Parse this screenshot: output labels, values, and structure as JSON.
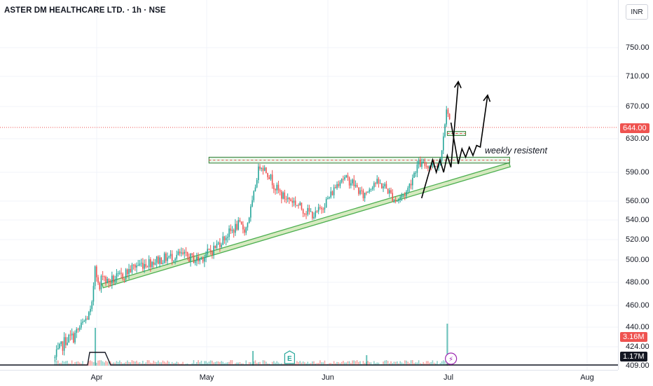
{
  "header": {
    "title": "ASTER DM HEALTHCARE LTD. · 1h · NSE",
    "currency": "INR"
  },
  "badges": {
    "last_price": "644.00",
    "volume_1": "3.16M",
    "volume_2": "1.17M",
    "earnings_marker": "E",
    "dividend_marker": "⚡"
  },
  "colors": {
    "up": "#26a69a",
    "down": "#ef5350",
    "trendline": "#4caf50",
    "drawing": "#000000",
    "price_line": "#ef5350",
    "zone_border": "#8bc34a"
  },
  "annotation": {
    "text": "weekly resistent"
  },
  "chart_data": {
    "type": "candlestick",
    "y_axis": {
      "ticks": [
        750,
        710,
        670,
        630,
        590,
        560,
        540,
        520,
        500,
        480,
        460,
        440,
        424,
        409
      ],
      "labels": [
        "750.00",
        "710.00",
        "670.00",
        "630.00",
        "590.00",
        "560.00",
        "540.00",
        "520.00",
        "500.00",
        "480.00",
        "460.00",
        "440.00",
        "424.00",
        "409.00"
      ]
    },
    "x_axis": {
      "labels": [
        "Apr",
        "May",
        "Jun",
        "Jul",
        "Aug"
      ]
    },
    "last_price": 644.0,
    "price_path": [
      {
        "date": "2024-03-21",
        "price": 415
      },
      {
        "date": "2024-03-24",
        "price": 430
      },
      {
        "date": "2024-03-26",
        "price": 432
      },
      {
        "date": "2024-03-28",
        "price": 440
      },
      {
        "date": "2024-03-31",
        "price": 455
      },
      {
        "date": "2024-04-01",
        "price": 500
      },
      {
        "date": "2024-04-02",
        "price": 470
      },
      {
        "date": "2024-04-03",
        "price": 490
      },
      {
        "date": "2024-04-04",
        "price": 480
      },
      {
        "date": "2024-04-08",
        "price": 485
      },
      {
        "date": "2024-04-12",
        "price": 495
      },
      {
        "date": "2024-04-18",
        "price": 500
      },
      {
        "date": "2024-04-24",
        "price": 505
      },
      {
        "date": "2024-04-29",
        "price": 500
      },
      {
        "date": "2024-05-03",
        "price": 510
      },
      {
        "date": "2024-05-07",
        "price": 525
      },
      {
        "date": "2024-05-10",
        "price": 535
      },
      {
        "date": "2024-05-12",
        "price": 530
      },
      {
        "date": "2024-05-14",
        "price": 560
      },
      {
        "date": "2024-05-15",
        "price": 585
      },
      {
        "date": "2024-05-16",
        "price": 600
      },
      {
        "date": "2024-05-18",
        "price": 590
      },
      {
        "date": "2024-05-20",
        "price": 575
      },
      {
        "date": "2024-05-22",
        "price": 565
      },
      {
        "date": "2024-05-25",
        "price": 560
      },
      {
        "date": "2024-05-28",
        "price": 550
      },
      {
        "date": "2024-05-31",
        "price": 545
      },
      {
        "date": "2024-06-04",
        "price": 565
      },
      {
        "date": "2024-06-07",
        "price": 585
      },
      {
        "date": "2024-06-10",
        "price": 580
      },
      {
        "date": "2024-06-13",
        "price": 565
      },
      {
        "date": "2024-06-16",
        "price": 580
      },
      {
        "date": "2024-06-19",
        "price": 575
      },
      {
        "date": "2024-06-22",
        "price": 560
      },
      {
        "date": "2024-06-25",
        "price": 570
      },
      {
        "date": "2024-06-28",
        "price": 600
      },
      {
        "date": "2024-07-01",
        "price": 598
      },
      {
        "date": "2024-07-04",
        "price": 600
      },
      {
        "date": "2024-07-05",
        "price": 640
      },
      {
        "date": "2024-07-06",
        "price": 670
      },
      {
        "date": "2024-07-07",
        "price": 644
      }
    ],
    "volume_spikes": [
      {
        "date": "2024-04-01",
        "level": 0.9
      },
      {
        "date": "2024-05-14",
        "level": 0.35
      },
      {
        "date": "2024-06-14",
        "level": 0.25
      },
      {
        "date": "2024-07-06",
        "level": 1.0
      }
    ],
    "trendline": {
      "from": {
        "date": "2024-04-03",
        "price": 477
      },
      "to": {
        "date": "2024-07-23",
        "price": 599
      }
    },
    "resistance_zone": {
      "from": "2024-05-02",
      "to": "2024-07-23",
      "price_low": 601,
      "price_high": 608
    },
    "upper_zone": {
      "from": "2024-07-06",
      "to": "2024-07-11",
      "price_low": 634,
      "price_high": 639
    },
    "projection_paths": [
      [
        {
          "date": "2024-06-29",
          "price": 563
        },
        {
          "date": "2024-07-02",
          "price": 605
        },
        {
          "date": "2024-07-03",
          "price": 590
        },
        {
          "date": "2024-07-04",
          "price": 605
        },
        {
          "date": "2024-07-05",
          "price": 590
        },
        {
          "date": "2024-07-06",
          "price": 610
        },
        {
          "date": "2024-07-07",
          "price": 596
        },
        {
          "date": "2024-07-08",
          "price": 646
        },
        {
          "date": "2024-07-09",
          "price": 703
        }
      ],
      [
        {
          "date": "2024-07-07",
          "price": 650
        },
        {
          "date": "2024-07-09",
          "price": 600
        },
        {
          "date": "2024-07-10",
          "price": 618
        },
        {
          "date": "2024-07-11",
          "price": 608
        },
        {
          "date": "2024-07-12",
          "price": 620
        },
        {
          "date": "2024-07-13",
          "price": 610
        },
        {
          "date": "2024-07-14",
          "price": 622
        },
        {
          "date": "2024-07-15",
          "price": 620
        },
        {
          "date": "2024-07-17",
          "price": 685
        }
      ]
    ]
  }
}
